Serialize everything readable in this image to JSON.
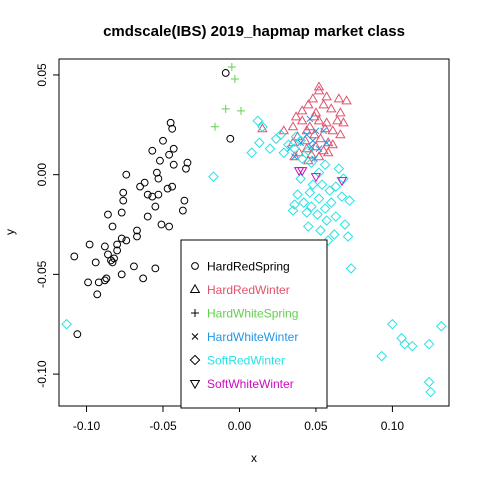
{
  "chart_data": {
    "type": "scatter",
    "title": "cmdscale(IBS) 2019_hapmap market class",
    "xlabel": "x",
    "ylabel": "y",
    "xlim": [
      -0.118,
      0.137
    ],
    "ylim": [
      -0.116,
      0.058
    ],
    "xticks": [
      -0.1,
      -0.05,
      0.0,
      0.05,
      0.1
    ],
    "xtick_labels": [
      "-0.10",
      "-0.05",
      "0.00",
      "0.05",
      "0.10"
    ],
    "yticks": [
      -0.1,
      -0.05,
      0.0,
      0.05
    ],
    "ytick_labels": [
      "-0.10",
      "-0.05",
      "0.00",
      "0.05"
    ],
    "grid": false,
    "legend_position": "bottom-center",
    "series": [
      {
        "name": "HardRedSpring",
        "symbol": "circle",
        "color": "#000000",
        "points": [
          [
            -0.009,
            0.051
          ],
          [
            -0.045,
            0.026
          ],
          [
            -0.044,
            0.023
          ],
          [
            -0.006,
            0.018
          ],
          [
            -0.05,
            0.017
          ],
          [
            -0.043,
            0.013
          ],
          [
            -0.046,
            0.01
          ],
          [
            -0.057,
            0.012
          ],
          [
            -0.052,
            0.007
          ],
          [
            -0.034,
            0.006
          ],
          [
            -0.043,
            0.005
          ],
          [
            -0.035,
            0.003
          ],
          [
            -0.054,
            0.001
          ],
          [
            -0.074,
            0.0
          ],
          [
            -0.053,
            -0.002
          ],
          [
            -0.062,
            -0.004
          ],
          [
            -0.044,
            -0.006
          ],
          [
            -0.047,
            -0.007
          ],
          [
            -0.065,
            -0.006
          ],
          [
            -0.076,
            -0.009
          ],
          [
            -0.053,
            -0.01
          ],
          [
            -0.06,
            -0.01
          ],
          [
            -0.057,
            -0.011
          ],
          [
            -0.036,
            -0.013
          ],
          [
            -0.076,
            -0.013
          ],
          [
            -0.055,
            -0.016
          ],
          [
            -0.077,
            -0.019
          ],
          [
            -0.037,
            -0.018
          ],
          [
            -0.06,
            -0.021
          ],
          [
            -0.086,
            -0.02
          ],
          [
            -0.051,
            -0.025
          ],
          [
            -0.083,
            -0.026
          ],
          [
            -0.067,
            -0.028
          ],
          [
            -0.067,
            -0.031
          ],
          [
            -0.046,
            -0.026
          ],
          [
            -0.077,
            -0.032
          ],
          [
            -0.08,
            -0.035
          ],
          [
            -0.074,
            -0.033
          ],
          [
            -0.098,
            -0.035
          ],
          [
            -0.088,
            -0.036
          ],
          [
            -0.08,
            -0.038
          ],
          [
            -0.086,
            -0.04
          ],
          [
            -0.082,
            -0.042
          ],
          [
            -0.084,
            -0.043
          ],
          [
            -0.083,
            -0.044
          ],
          [
            -0.108,
            -0.041
          ],
          [
            -0.094,
            -0.044
          ],
          [
            -0.069,
            -0.046
          ],
          [
            -0.055,
            -0.047
          ],
          [
            -0.077,
            -0.05
          ],
          [
            -0.063,
            -0.052
          ],
          [
            -0.087,
            -0.052
          ],
          [
            -0.088,
            -0.053
          ],
          [
            -0.092,
            -0.054
          ],
          [
            -0.099,
            -0.054
          ],
          [
            -0.093,
            -0.06
          ],
          [
            -0.106,
            -0.08
          ]
        ]
      },
      {
        "name": "HardRedWinter",
        "symbol": "triangle-up",
        "color": "#DF536B",
        "points": [
          [
            0.052,
            0.044
          ],
          [
            0.052,
            0.042
          ],
          [
            0.057,
            0.039
          ],
          [
            0.048,
            0.038
          ],
          [
            0.065,
            0.038
          ],
          [
            0.07,
            0.037
          ],
          [
            0.045,
            0.035
          ],
          [
            0.055,
            0.035
          ],
          [
            0.041,
            0.032
          ],
          [
            0.05,
            0.031
          ],
          [
            0.06,
            0.033
          ],
          [
            0.066,
            0.031
          ],
          [
            0.037,
            0.029
          ],
          [
            0.049,
            0.029
          ],
          [
            0.052,
            0.027
          ],
          [
            0.064,
            0.027
          ],
          [
            0.041,
            0.027
          ],
          [
            0.057,
            0.026
          ],
          [
            0.046,
            0.024
          ],
          [
            0.068,
            0.026
          ],
          [
            0.035,
            0.024
          ],
          [
            0.056,
            0.023
          ],
          [
            0.044,
            0.022
          ],
          [
            0.061,
            0.022
          ],
          [
            0.029,
            0.022
          ],
          [
            0.049,
            0.02
          ],
          [
            0.066,
            0.02
          ],
          [
            0.038,
            0.019
          ],
          [
            0.053,
            0.018
          ],
          [
            0.043,
            0.017
          ],
          [
            0.058,
            0.016
          ],
          [
            0.035,
            0.016
          ],
          [
            0.05,
            0.014
          ],
          [
            0.061,
            0.015
          ],
          [
            0.044,
            0.013
          ],
          [
            0.055,
            0.012
          ],
          [
            0.039,
            0.011
          ],
          [
            0.047,
            0.01
          ],
          [
            0.058,
            0.011
          ],
          [
            0.036,
            0.009
          ],
          [
            0.052,
            0.009
          ],
          [
            0.045,
            0.007
          ],
          [
            0.015,
            0.023
          ]
        ]
      },
      {
        "name": "HardWhiteSpring",
        "symbol": "plus",
        "color": "#61D04F",
        "points": [
          [
            -0.005,
            0.054
          ],
          [
            -0.003,
            0.048
          ],
          [
            -0.009,
            0.033
          ],
          [
            0.001,
            0.032
          ],
          [
            -0.016,
            0.024
          ]
        ]
      },
      {
        "name": "HardWhiteWinter",
        "symbol": "cross",
        "color": "#2297E6",
        "points": [
          [
            0.046,
            0.028
          ],
          [
            0.05,
            0.022
          ],
          [
            0.055,
            0.022
          ],
          [
            0.044,
            0.02
          ],
          [
            0.048,
            0.017
          ],
          [
            0.057,
            0.016
          ],
          [
            0.04,
            0.016
          ],
          [
            0.052,
            0.013
          ],
          [
            0.033,
            0.013
          ],
          [
            0.049,
            0.008
          ],
          [
            0.047,
            0.014
          ],
          [
            0.036,
            0.009
          ]
        ]
      },
      {
        "name": "SoftRedWinter",
        "symbol": "diamond",
        "color": "#28E2E5",
        "points": [
          [
            0.012,
            0.027
          ],
          [
            0.015,
            0.024
          ],
          [
            0.027,
            0.02
          ],
          [
            0.037,
            0.019
          ],
          [
            0.024,
            0.018
          ],
          [
            0.04,
            0.017
          ],
          [
            0.013,
            0.016
          ],
          [
            0.032,
            0.015
          ],
          [
            0.036,
            0.013
          ],
          [
            0.02,
            0.013
          ],
          [
            0.045,
            0.012
          ],
          [
            0.029,
            0.011
          ],
          [
            0.008,
            0.011
          ],
          [
            0.041,
            0.008
          ],
          [
            0.047,
            0.006
          ],
          [
            0.056,
            0.005
          ],
          [
            0.065,
            0.003
          ],
          [
            0.052,
            0.001
          ],
          [
            0.04,
            -0.002
          ],
          [
            0.068,
            -0.002
          ],
          [
            0.048,
            -0.005
          ],
          [
            0.054,
            -0.005
          ],
          [
            0.063,
            -0.006
          ],
          [
            0.059,
            -0.008
          ],
          [
            0.046,
            -0.009
          ],
          [
            0.038,
            -0.01
          ],
          [
            0.067,
            -0.011
          ],
          [
            0.052,
            -0.012
          ],
          [
            0.042,
            -0.014
          ],
          [
            0.06,
            -0.014
          ],
          [
            0.036,
            -0.015
          ],
          [
            0.047,
            -0.016
          ],
          [
            0.056,
            -0.017
          ],
          [
            0.072,
            -0.013
          ],
          [
            0.044,
            -0.019
          ],
          [
            0.051,
            -0.02
          ],
          [
            0.063,
            -0.021
          ],
          [
            0.057,
            -0.023
          ],
          [
            0.069,
            -0.025
          ],
          [
            0.045,
            -0.026
          ],
          [
            0.053,
            -0.028
          ],
          [
            0.062,
            -0.03
          ],
          [
            0.071,
            -0.031
          ],
          [
            0.035,
            -0.018
          ],
          [
            0.058,
            -0.033
          ],
          [
            0.073,
            -0.047
          ],
          [
            -0.017,
            -0.001
          ],
          [
            -0.113,
            -0.075
          ],
          [
            0.1,
            -0.075
          ],
          [
            0.106,
            -0.082
          ],
          [
            0.108,
            -0.085
          ],
          [
            0.113,
            -0.086
          ],
          [
            0.124,
            -0.085
          ],
          [
            0.132,
            -0.076
          ],
          [
            0.093,
            -0.091
          ],
          [
            0.124,
            -0.104
          ],
          [
            0.125,
            -0.109
          ]
        ]
      },
      {
        "name": "SoftWhiteWinter",
        "symbol": "triangle-down",
        "color": "#CD0BBC",
        "points": [
          [
            0.041,
            0.002
          ],
          [
            0.039,
            0.002
          ],
          [
            0.05,
            -0.001
          ],
          [
            0.067,
            -0.003
          ]
        ]
      }
    ]
  }
}
